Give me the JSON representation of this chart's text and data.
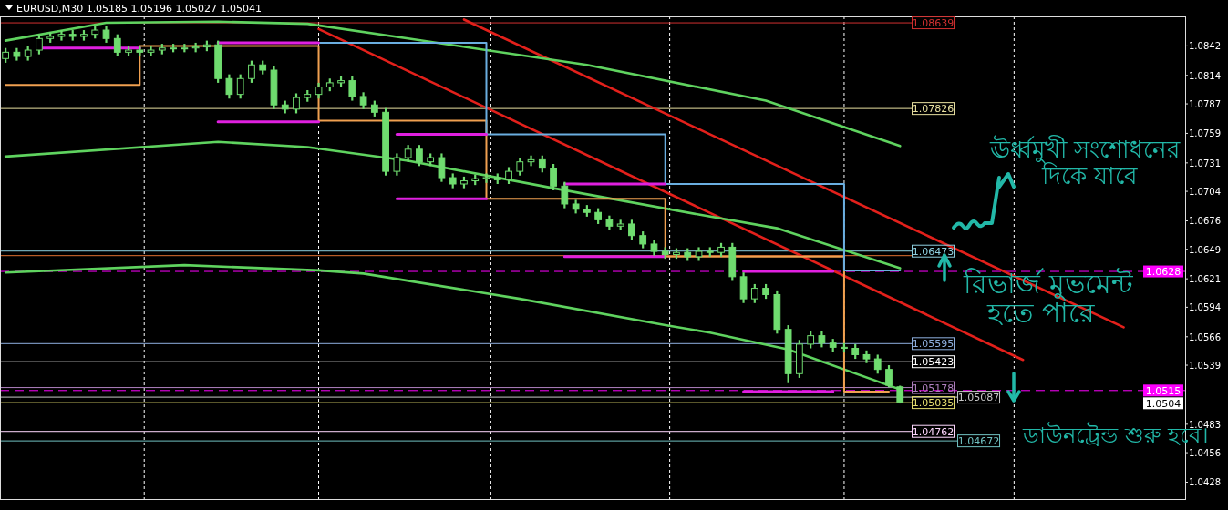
{
  "chart_data": {
    "type": "candlestick",
    "title": "EURUSD,M30 1.05185 1.05196 1.05027 1.05041",
    "color": "#6fdc6f",
    "tick_labels": "y",
    "categories": [
      null,
      null,
      null,
      null,
      null,
      null,
      null,
      null,
      null,
      null,
      null,
      null,
      null,
      null,
      null,
      null,
      null,
      null,
      null,
      null,
      null,
      null,
      null,
      null,
      null,
      null,
      null,
      null,
      null,
      null,
      null,
      null,
      null,
      null,
      null,
      null,
      null,
      null,
      null,
      null,
      null,
      null,
      null,
      null,
      null,
      null,
      null,
      null,
      null,
      null,
      null,
      null,
      null,
      null,
      null,
      null,
      null,
      null,
      null,
      null,
      null,
      null,
      null,
      null,
      null,
      null,
      null,
      null,
      null,
      null,
      null,
      null,
      null,
      null,
      null,
      null,
      null,
      null,
      null,
      null,
      null,
      null,
      null,
      null,
      null,
      null,
      null,
      null,
      null,
      null,
      null,
      null,
      null,
      null,
      null,
      null,
      null,
      null,
      null,
      null,
      null,
      null,
      null,
      null,
      null,
      null
    ],
    "ohlc": [
      [
        1.083,
        1.084,
        1.0826,
        1.0836
      ],
      [
        1.0836,
        1.084,
        1.0828,
        1.0832
      ],
      [
        1.0832,
        1.0842,
        1.0828,
        1.0838
      ],
      [
        1.0838,
        1.0853,
        1.0834,
        1.0849
      ],
      [
        1.0849,
        1.0855,
        1.0845,
        1.0851
      ],
      [
        1.0851,
        1.0857,
        1.0847,
        1.0853
      ],
      [
        1.0853,
        1.0857,
        1.0847,
        1.0851
      ],
      [
        1.0851,
        1.0857,
        1.0847,
        1.0853
      ],
      [
        1.0853,
        1.0861,
        1.0849,
        1.0857
      ],
      [
        1.0857,
        1.0861,
        1.0845,
        1.0849
      ],
      [
        1.0849,
        1.0853,
        1.0832,
        1.0836
      ],
      [
        1.0836,
        1.0842,
        1.0832,
        1.0838
      ],
      [
        1.0838,
        1.0842,
        1.0832,
        1.0836
      ],
      [
        1.0836,
        1.0842,
        1.0832,
        1.0838
      ],
      [
        1.0838,
        1.0844,
        1.0834,
        1.084
      ],
      [
        1.084,
        1.0844,
        1.0836,
        1.084
      ],
      [
        1.084,
        1.0844,
        1.0836,
        1.084
      ],
      [
        1.084,
        1.0845,
        1.0836,
        1.0841
      ],
      [
        1.0841,
        1.0847,
        1.0837,
        1.0843
      ],
      [
        1.0843,
        1.0847,
        1.0807,
        1.0811
      ],
      [
        1.0811,
        1.0815,
        1.0792,
        1.0796
      ],
      [
        1.0796,
        1.0815,
        1.0792,
        1.0811
      ],
      [
        1.0811,
        1.0828,
        1.0807,
        1.0824
      ],
      [
        1.0824,
        1.0828,
        1.0815,
        1.0819
      ],
      [
        1.0819,
        1.0823,
        1.0782,
        1.0786
      ],
      [
        1.0786,
        1.079,
        1.0778,
        1.0782
      ],
      [
        1.0782,
        1.0797,
        1.0778,
        1.0793
      ],
      [
        1.0793,
        1.08,
        1.0789,
        1.0796
      ],
      [
        1.0796,
        1.0807,
        1.0792,
        1.0803
      ],
      [
        1.0803,
        1.0811,
        1.0799,
        1.0807
      ],
      [
        1.0807,
        1.0813,
        1.0803,
        1.0809
      ],
      [
        1.0809,
        1.0813,
        1.079,
        1.0794
      ],
      [
        1.0794,
        1.0798,
        1.0782,
        1.0786
      ],
      [
        1.0786,
        1.079,
        1.0775,
        1.0779
      ],
      [
        1.0779,
        1.0783,
        1.0719,
        1.0723
      ],
      [
        1.0723,
        1.074,
        1.0719,
        1.0736
      ],
      [
        1.0736,
        1.0748,
        1.0732,
        1.0744
      ],
      [
        1.0744,
        1.0748,
        1.0728,
        1.0732
      ],
      [
        1.0732,
        1.074,
        1.0728,
        1.0736
      ],
      [
        1.0736,
        1.074,
        1.0713,
        1.0717
      ],
      [
        1.0717,
        1.0721,
        1.0707,
        1.0711
      ],
      [
        1.0711,
        1.0718,
        1.0707,
        1.0714
      ],
      [
        1.0714,
        1.072,
        1.071,
        1.0716
      ],
      [
        1.0716,
        1.0721,
        1.0712,
        1.0717
      ],
      [
        1.0717,
        1.0721,
        1.0711,
        1.0715
      ],
      [
        1.0715,
        1.0727,
        1.0711,
        1.0723
      ],
      [
        1.0723,
        1.0736,
        1.0719,
        1.0732
      ],
      [
        1.0732,
        1.0738,
        1.0728,
        1.0734
      ],
      [
        1.0734,
        1.0738,
        1.0722,
        1.0726
      ],
      [
        1.0726,
        1.073,
        1.0705,
        1.0709
      ],
      [
        1.0709,
        1.0713,
        1.0688,
        1.0692
      ],
      [
        1.0692,
        1.0696,
        1.0683,
        1.0687
      ],
      [
        1.0687,
        1.0691,
        1.068,
        1.0684
      ],
      [
        1.0684,
        1.0688,
        1.0673,
        1.0677
      ],
      [
        1.0677,
        1.0681,
        1.0667,
        1.0671
      ],
      [
        1.0671,
        1.0677,
        1.0667,
        1.0673
      ],
      [
        1.0673,
        1.0677,
        1.0658,
        1.0662
      ],
      [
        1.0662,
        1.0666,
        1.065,
        1.0654
      ],
      [
        1.0654,
        1.0658,
        1.0643,
        1.0647
      ],
      [
        1.0647,
        1.0651,
        1.064,
        1.0644
      ],
      [
        1.0644,
        1.065,
        1.064,
        1.0646
      ],
      [
        1.0646,
        1.065,
        1.0638,
        1.0642
      ],
      [
        1.0642,
        1.0651,
        1.0638,
        1.0647
      ],
      [
        1.0647,
        1.0651,
        1.0642,
        1.0646
      ],
      [
        1.0646,
        1.0655,
        1.0642,
        1.0651
      ],
      [
        1.0651,
        1.0655,
        1.0619,
        1.0623
      ],
      [
        1.0623,
        1.0627,
        1.0598,
        1.0602
      ],
      [
        1.0602,
        1.0616,
        1.0598,
        1.0612
      ],
      [
        1.0612,
        1.0616,
        1.0602,
        1.0606
      ],
      [
        1.0606,
        1.061,
        1.0569,
        1.0573
      ],
      [
        1.0573,
        1.0577,
        1.0522,
        1.0531
      ],
      [
        1.0531,
        1.0563,
        1.0527,
        1.0559
      ],
      [
        1.0559,
        1.0571,
        1.0555,
        1.0567
      ],
      [
        1.0567,
        1.0571,
        1.0556,
        1.056
      ],
      [
        1.056,
        1.0564,
        1.0552,
        1.0556
      ],
      [
        1.0556,
        1.056,
        1.0551,
        1.0555
      ],
      [
        1.0555,
        1.0559,
        1.0545,
        1.0549
      ],
      [
        1.0549,
        1.0553,
        1.0541,
        1.0545
      ],
      [
        1.0545,
        1.0549,
        1.0531,
        1.0535
      ],
      [
        1.0535,
        1.0539,
        1.0518,
        1.052
      ],
      [
        1.05185,
        1.05196,
        1.05027,
        1.05041
      ],
      null,
      null,
      null,
      null,
      null,
      null,
      null,
      null,
      null,
      null,
      null,
      null,
      null,
      null,
      null,
      null,
      null,
      null,
      null,
      null,
      null,
      null,
      null,
      null,
      null
    ],
    "ylim": [
      1.0412,
      1.087
    ],
    "yticks": [
      1.0842,
      1.0814,
      1.0787,
      1.0759,
      1.0731,
      1.0704,
      1.0676,
      1.0649,
      1.0621,
      1.0594,
      1.0566,
      1.0539,
      1.0483,
      1.0456,
      1.0428
    ],
    "series": [
      {
        "type": "line",
        "color": "#e3201b",
        "values": [
          null,
          null,
          null,
          null,
          null,
          null,
          null,
          null,
          null,
          null,
          null,
          null,
          null,
          null,
          null,
          null,
          null,
          null,
          null,
          null,
          null,
          null,
          null,
          null,
          null,
          null,
          null,
          null,
          null,
          null,
          null,
          null,
          null,
          null,
          null,
          null,
          null,
          null,
          null,
          null,
          null,
          1.0867,
          null,
          null,
          null,
          null,
          null,
          null,
          null,
          null,
          null,
          null,
          null,
          null,
          null,
          null,
          null,
          null,
          null,
          null,
          null,
          null,
          null,
          null,
          null,
          null,
          null,
          null,
          null,
          null,
          null,
          null,
          null,
          null,
          null,
          null,
          null,
          null,
          null,
          null,
          null,
          null,
          null,
          null,
          null,
          null,
          null,
          null,
          null,
          null,
          null,
          null,
          null,
          null,
          null,
          null,
          null,
          null,
          null,
          null,
          1.0575,
          null,
          null,
          null,
          null,
          null
        ]
      },
      {
        "type": "line",
        "color": "#e3201b",
        "values": [
          null,
          null,
          null,
          null,
          null,
          null,
          null,
          null,
          null,
          null,
          null,
          null,
          null,
          null,
          null,
          null,
          null,
          null,
          null,
          null,
          null,
          null,
          null,
          null,
          null,
          null,
          null,
          null,
          1.0858,
          null,
          null,
          null,
          null,
          null,
          null,
          null,
          null,
          null,
          null,
          null,
          null,
          null,
          null,
          null,
          null,
          null,
          null,
          null,
          null,
          null,
          null,
          null,
          null,
          null,
          null,
          null,
          null,
          null,
          null,
          null,
          null,
          null,
          null,
          null,
          null,
          null,
          null,
          null,
          null,
          null,
          null,
          null,
          null,
          null,
          null,
          null,
          null,
          null,
          null,
          null,
          null,
          null,
          null,
          null,
          null,
          null,
          null,
          null,
          null,
          null,
          null,
          1.0544,
          null,
          null,
          null,
          null,
          null,
          null,
          null,
          null,
          null,
          null,
          null,
          null,
          null,
          null
        ]
      },
      {
        "type": "line",
        "color": "#5fd35f",
        "values": [
          1.0847,
          null,
          null,
          null,
          null,
          null,
          null,
          null,
          null,
          1.0864,
          null,
          null,
          null,
          null,
          null,
          null,
          null,
          null,
          null,
          1.0865,
          null,
          null,
          null,
          null,
          null,
          null,
          null,
          1.0863,
          null,
          null,
          null,
          null,
          null,
          null,
          null,
          null,
          1.0849,
          null,
          null,
          null,
          null,
          null,
          null,
          null,
          null,
          null,
          null,
          null,
          null,
          null,
          null,
          null,
          1.0824,
          null,
          null,
          null,
          null,
          null,
          null,
          null,
          null,
          null,
          null,
          null,
          null,
          null,
          null,
          null,
          1.079,
          null,
          null,
          null,
          null,
          null,
          null,
          null,
          null,
          null,
          null,
          null,
          1.0747,
          null,
          null,
          null,
          null,
          null,
          null,
          null,
          null,
          null,
          null,
          null,
          null,
          null,
          null,
          null,
          null,
          null,
          null,
          null,
          null,
          null,
          null,
          null,
          null,
          null
        ]
      },
      {
        "type": "line",
        "color": "#5fd35f",
        "values": [
          1.0737,
          null,
          null,
          null,
          null,
          null,
          null,
          null,
          null,
          null,
          null,
          null,
          null,
          null,
          null,
          null,
          null,
          null,
          null,
          1.0751,
          null,
          null,
          null,
          null,
          null,
          null,
          null,
          1.0746,
          null,
          null,
          null,
          null,
          null,
          null,
          null,
          null,
          1.0733,
          null,
          null,
          null,
          null,
          null,
          null,
          null,
          null,
          null,
          null,
          null,
          null,
          1.0707,
          null,
          null,
          null,
          null,
          null,
          null,
          null,
          null,
          null,
          null,
          null,
          null,
          1.0682,
          null,
          null,
          null,
          null,
          null,
          null,
          1.0669,
          null,
          null,
          null,
          null,
          null,
          null,
          null,
          null,
          null,
          null,
          1.0631,
          null,
          null,
          null,
          null,
          null,
          null,
          null,
          null,
          null,
          null,
          null,
          null,
          null,
          null,
          null,
          null,
          null,
          null,
          null,
          null,
          null,
          null,
          null,
          null,
          null
        ]
      },
      {
        "type": "line",
        "color": "#5fd35f",
        "values": [
          1.0627,
          null,
          null,
          null,
          null,
          null,
          null,
          null,
          null,
          null,
          null,
          null,
          null,
          null,
          null,
          null,
          1.0634,
          null,
          null,
          null,
          null,
          null,
          null,
          null,
          null,
          null,
          null,
          null,
          1.0629,
          null,
          null,
          null,
          1.0626,
          null,
          null,
          null,
          null,
          null,
          null,
          null,
          null,
          null,
          null,
          null,
          null,
          null,
          1.0602,
          null,
          null,
          null,
          null,
          null,
          null,
          null,
          null,
          null,
          null,
          null,
          null,
          1.0577,
          null,
          null,
          null,
          1.057,
          null,
          null,
          null,
          null,
          null,
          null,
          1.0554,
          null,
          null,
          null,
          null,
          null,
          null,
          null,
          null,
          null,
          1.0516,
          null,
          null,
          null,
          null,
          null,
          null,
          null,
          null,
          null,
          null,
          null,
          null,
          null,
          null,
          null,
          null,
          null,
          null,
          null,
          null,
          null,
          null,
          null,
          null,
          null
        ]
      },
      {
        "type": "step",
        "color": "#f0a050",
        "values": [
          1.0805,
          null,
          null,
          null,
          null,
          null,
          null,
          null,
          null,
          null,
          null,
          null,
          1.0842,
          null,
          null,
          null,
          null,
          null,
          null,
          null,
          null,
          null,
          null,
          null,
          null,
          null,
          null,
          null,
          1.0771,
          null,
          null,
          null,
          null,
          null,
          null,
          null,
          null,
          null,
          null,
          null,
          null,
          null,
          null,
          1.0697,
          null,
          null,
          null,
          null,
          null,
          null,
          null,
          null,
          null,
          null,
          null,
          null,
          null,
          null,
          null,
          1.0642,
          null,
          null,
          null,
          null,
          null,
          null,
          null,
          null,
          null,
          null,
          null,
          null,
          null,
          null,
          null,
          1.0514,
          null,
          null,
          null,
          1.0514,
          null,
          null,
          null,
          null,
          null,
          null,
          null,
          null,
          null,
          null,
          null,
          null,
          null,
          null,
          null,
          null,
          null,
          null,
          null,
          null,
          null,
          null,
          null,
          null,
          null,
          null
        ]
      },
      {
        "type": "step",
        "color": "#6aaee0",
        "values": [
          null,
          null,
          null,
          null,
          null,
          null,
          null,
          null,
          null,
          null,
          null,
          null,
          null,
          null,
          null,
          null,
          null,
          null,
          null,
          null,
          null,
          null,
          null,
          null,
          null,
          null,
          null,
          null,
          1.0845,
          null,
          null,
          null,
          null,
          null,
          null,
          null,
          null,
          null,
          null,
          null,
          null,
          null,
          null,
          1.0758,
          null,
          null,
          null,
          null,
          null,
          null,
          null,
          null,
          null,
          null,
          null,
          null,
          null,
          null,
          null,
          1.0711,
          null,
          null,
          null,
          null,
          null,
          null,
          null,
          null,
          null,
          null,
          null,
          null,
          null,
          null,
          null,
          1.0629,
          null,
          null,
          null,
          null,
          1.0629,
          null,
          null,
          null,
          null,
          null,
          null,
          null,
          null,
          null,
          null,
          null,
          null,
          null,
          null,
          null,
          null,
          null,
          null,
          null,
          null,
          null,
          null,
          null,
          null,
          null
        ]
      },
      {
        "type": "line",
        "color": "#e020e0",
        "values": [
          null,
          null,
          null,
          1.084,
          null,
          null,
          null,
          null,
          null,
          null,
          null,
          null,
          1.084,
          null,
          null,
          null,
          null,
          null,
          null,
          null,
          null,
          null,
          null,
          null,
          null,
          null,
          null,
          null,
          null,
          null,
          null,
          null,
          null,
          null,
          null,
          null,
          null,
          null,
          null,
          null,
          null,
          null,
          null,
          null,
          null,
          null,
          null,
          null,
          null,
          null,
          null,
          null,
          null,
          null,
          null,
          null,
          null,
          null,
          null,
          null,
          null,
          null,
          null,
          null,
          null,
          null,
          null,
          null,
          null,
          null,
          null,
          null,
          null,
          null,
          null,
          null,
          null,
          null,
          null,
          null,
          null,
          null,
          null,
          null,
          null,
          null,
          null,
          null,
          null,
          null,
          null,
          null,
          null,
          null,
          null,
          null,
          null,
          null,
          null,
          null,
          null,
          null,
          null,
          null,
          null,
          null
        ]
      },
      {
        "type": "line",
        "color": "#e020e0",
        "values": [
          null,
          null,
          null,
          null,
          null,
          null,
          null,
          null,
          null,
          null,
          null,
          null,
          null,
          null,
          null,
          null,
          null,
          null,
          null,
          1.0845,
          null,
          null,
          null,
          null,
          null,
          null,
          null,
          null,
          1.0845,
          null,
          null,
          null,
          null,
          null,
          null,
          null,
          null,
          null,
          null,
          null,
          null,
          null,
          null,
          null,
          null,
          null,
          null,
          null,
          null,
          null,
          null,
          null,
          null,
          null,
          null,
          null,
          null,
          null,
          null,
          null,
          null,
          null,
          null,
          null,
          null,
          null,
          null,
          null,
          null,
          null,
          null,
          null,
          null,
          null,
          null,
          null,
          null,
          null,
          null,
          null,
          null,
          null,
          null,
          null,
          null,
          null,
          null,
          null,
          null,
          null,
          null,
          null,
          null,
          null,
          null,
          null,
          null,
          null,
          null,
          null,
          null,
          null,
          null,
          null,
          null,
          null
        ]
      },
      {
        "type": "line",
        "color": "#e020e0",
        "values": [
          null,
          null,
          null,
          null,
          null,
          null,
          null,
          null,
          null,
          null,
          null,
          null,
          null,
          null,
          null,
          null,
          null,
          null,
          null,
          1.077,
          null,
          null,
          null,
          null,
          null,
          null,
          null,
          null,
          1.077,
          null,
          null,
          null,
          null,
          null,
          null,
          null,
          null,
          null,
          null,
          null,
          null,
          null,
          null,
          null,
          null,
          null,
          null,
          null,
          null,
          null,
          null,
          null,
          null,
          null,
          null,
          null,
          null,
          null,
          null,
          null,
          null,
          null,
          null,
          null,
          null,
          null,
          null,
          null,
          null,
          null,
          null,
          null,
          null,
          null,
          null,
          null,
          null,
          null,
          null,
          null,
          null,
          null,
          null,
          null,
          null,
          null,
          null,
          null,
          null,
          null,
          null,
          null,
          null,
          null,
          null,
          null,
          null,
          null,
          null,
          null,
          null,
          null,
          null,
          null,
          null,
          null
        ]
      },
      {
        "type": "line",
        "color": "#e020e0",
        "values": [
          null,
          null,
          null,
          null,
          null,
          null,
          null,
          null,
          null,
          null,
          null,
          null,
          null,
          null,
          null,
          null,
          null,
          null,
          null,
          null,
          null,
          null,
          null,
          null,
          null,
          null,
          null,
          null,
          null,
          null,
          null,
          null,
          null,
          null,
          null,
          1.0758,
          null,
          null,
          null,
          null,
          null,
          null,
          null,
          1.0758,
          null,
          null,
          null,
          null,
          null,
          null,
          null,
          null,
          null,
          null,
          null,
          null,
          null,
          null,
          null,
          null,
          null,
          null,
          null,
          null,
          null,
          null,
          null,
          null,
          null,
          null,
          null,
          null,
          null,
          null,
          null,
          null,
          null,
          null,
          null,
          null,
          null,
          null,
          null,
          null,
          null,
          null,
          null,
          null,
          null,
          null,
          null,
          null,
          null,
          null,
          null,
          null,
          null,
          null,
          null,
          null,
          null,
          null,
          null,
          null,
          null,
          null
        ]
      },
      {
        "type": "line",
        "color": "#e020e0",
        "values": [
          null,
          null,
          null,
          null,
          null,
          null,
          null,
          null,
          null,
          null,
          null,
          null,
          null,
          null,
          null,
          null,
          null,
          null,
          null,
          null,
          null,
          null,
          null,
          null,
          null,
          null,
          null,
          null,
          null,
          null,
          null,
          null,
          null,
          null,
          null,
          1.0697,
          null,
          null,
          null,
          null,
          null,
          null,
          null,
          1.0697,
          null,
          null,
          null,
          null,
          null,
          null,
          null,
          null,
          null,
          null,
          null,
          null,
          null,
          null,
          null,
          null,
          null,
          null,
          null,
          null,
          null,
          null,
          null,
          null,
          null,
          null,
          null,
          null,
          null,
          null,
          null,
          null,
          null,
          null,
          null,
          null,
          null,
          null,
          null,
          null,
          null,
          null,
          null,
          null,
          null,
          null,
          null,
          null,
          null,
          null,
          null,
          null,
          null,
          null,
          null,
          null,
          null,
          null,
          null,
          null,
          null,
          null
        ]
      },
      {
        "type": "line",
        "color": "#e020e0",
        "values": [
          null,
          null,
          null,
          null,
          null,
          null,
          null,
          null,
          null,
          null,
          null,
          null,
          null,
          null,
          null,
          null,
          null,
          null,
          null,
          null,
          null,
          null,
          null,
          null,
          null,
          null,
          null,
          null,
          null,
          null,
          null,
          null,
          null,
          null,
          null,
          null,
          null,
          null,
          null,
          null,
          null,
          null,
          null,
          null,
          null,
          null,
          null,
          null,
          null,
          null,
          1.0711,
          null,
          null,
          null,
          null,
          null,
          null,
          null,
          null,
          1.0711,
          null,
          null,
          null,
          null,
          null,
          null,
          null,
          null,
          null,
          null,
          null,
          null,
          null,
          null,
          null,
          null,
          null,
          null,
          null,
          null,
          null,
          null,
          null,
          null,
          null,
          null,
          null,
          null,
          null,
          null,
          null,
          null,
          null,
          null,
          null,
          null,
          null,
          null,
          null,
          null,
          null,
          null,
          null,
          null,
          null,
          null
        ]
      },
      {
        "type": "line",
        "color": "#e020e0",
        "values": [
          null,
          null,
          null,
          null,
          null,
          null,
          null,
          null,
          null,
          null,
          null,
          null,
          null,
          null,
          null,
          null,
          null,
          null,
          null,
          null,
          null,
          null,
          null,
          null,
          null,
          null,
          null,
          null,
          null,
          null,
          null,
          null,
          null,
          null,
          null,
          null,
          null,
          null,
          null,
          null,
          null,
          null,
          null,
          null,
          null,
          null,
          null,
          null,
          null,
          null,
          1.0642,
          null,
          null,
          null,
          null,
          null,
          null,
          null,
          null,
          1.0642,
          null,
          null,
          null,
          null,
          null,
          null,
          null,
          null,
          null,
          null,
          null,
          null,
          null,
          null,
          null,
          null,
          null,
          null,
          null,
          null,
          null,
          null,
          null,
          null,
          null,
          null,
          null,
          null,
          null,
          null,
          null,
          null,
          null,
          null,
          null,
          null,
          null,
          null,
          null,
          null,
          null,
          null,
          null,
          null,
          null,
          null
        ]
      },
      {
        "type": "line",
        "color": "#e020e0",
        "values": [
          null,
          null,
          null,
          null,
          null,
          null,
          null,
          null,
          null,
          null,
          null,
          null,
          null,
          null,
          null,
          null,
          null,
          null,
          null,
          null,
          null,
          null,
          null,
          null,
          null,
          null,
          null,
          null,
          null,
          null,
          null,
          null,
          null,
          null,
          null,
          null,
          null,
          null,
          null,
          null,
          null,
          null,
          null,
          null,
          null,
          null,
          null,
          null,
          null,
          null,
          null,
          null,
          null,
          null,
          null,
          null,
          null,
          null,
          null,
          null,
          null,
          null,
          null,
          null,
          null,
          null,
          1.0628,
          null,
          null,
          null,
          null,
          null,
          null,
          null,
          1.0628,
          null,
          null,
          null,
          null,
          null,
          null,
          null,
          null,
          null,
          null,
          null,
          null,
          null,
          null,
          null,
          null,
          null,
          null,
          null,
          null,
          null,
          null,
          null,
          null,
          null,
          null,
          null,
          null,
          null,
          null,
          null
        ]
      },
      {
        "type": "line",
        "color": "#e020e0",
        "values": [
          null,
          null,
          null,
          null,
          null,
          null,
          null,
          null,
          null,
          null,
          null,
          null,
          null,
          null,
          null,
          null,
          null,
          null,
          null,
          null,
          null,
          null,
          null,
          null,
          null,
          null,
          null,
          null,
          null,
          null,
          null,
          null,
          null,
          null,
          null,
          null,
          null,
          null,
          null,
          null,
          null,
          null,
          null,
          null,
          null,
          null,
          null,
          null,
          null,
          null,
          null,
          null,
          null,
          null,
          null,
          null,
          null,
          null,
          null,
          null,
          null,
          null,
          null,
          null,
          null,
          null,
          1.0514,
          null,
          null,
          null,
          null,
          null,
          null,
          null,
          1.0514,
          null,
          null,
          null,
          null,
          null,
          null,
          null,
          null,
          null,
          null,
          null,
          null,
          null,
          null,
          null,
          null,
          null,
          null,
          null,
          null,
          null,
          null,
          null,
          null,
          null,
          null,
          null,
          null,
          null,
          null,
          null
        ]
      }
    ],
    "ref_lines": [
      {
        "axis": "y",
        "value": 1.08639,
        "label": "1.08639",
        "color": "#d03030"
      },
      {
        "axis": "y",
        "value": 1.07826,
        "label": "1.07826",
        "color": "#e8e0a0"
      },
      {
        "axis": "y",
        "value": 1.06473,
        "label": "1.06473",
        "color": "#8fd0e0"
      },
      {
        "axis": "y",
        "value": 1.0643,
        "label": null,
        "color": "#e07030"
      },
      {
        "axis": "y",
        "value": 1.05595,
        "label": "1.05595",
        "color": "#8fb0e0"
      },
      {
        "axis": "y",
        "value": 1.05423,
        "label": "1.05423",
        "color": "#ffffff"
      },
      {
        "axis": "y",
        "value": 1.05178,
        "label": "1.05178",
        "color": "#b080c0"
      },
      {
        "axis": "y",
        "value": 1.05087,
        "label": "1.05087",
        "color": "#c8c8c8"
      },
      {
        "axis": "y",
        "value": 1.05035,
        "label": "1.05035",
        "color": "#e8e070"
      },
      {
        "axis": "y",
        "value": 1.04762,
        "label": "1.04762",
        "color": "#ffd8ff"
      },
      {
        "axis": "y",
        "value": 1.04672,
        "label": "1.04672",
        "color": "#70c0c0"
      },
      {
        "axis": "y",
        "value": 1.0628,
        "label": "1.0628",
        "color": "#ff00ff",
        "line_style": "dashed"
      },
      {
        "axis": "y",
        "value": 1.0515,
        "label": "1.0515",
        "color": "#ff00ff",
        "line_style": "dashed"
      }
    ],
    "annotations": [
      "ঊর্ধ্বমুখী সংশোধনের",
      "দিকে যাবে",
      "রিভার্জ মুভমেন্ট",
      "হতে পারে",
      "ডাউনট্রেন্ড শুরু হবে।",
      "1.0504"
    ]
  }
}
